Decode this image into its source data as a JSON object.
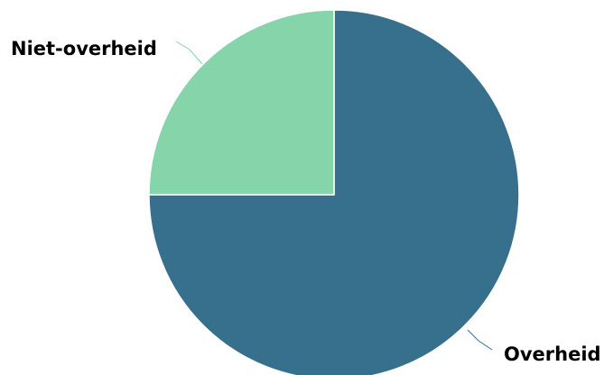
{
  "chart_data": {
    "type": "pie",
    "title": "",
    "slices": [
      {
        "label": "Overheid",
        "value": 75,
        "color": "#37708c"
      },
      {
        "label": "Niet-overheid",
        "value": 25,
        "color": "#85d4aa"
      }
    ],
    "start_angle": "12 o'clock",
    "direction": "clockwise",
    "legend": "none",
    "label_placement": "outside with leader lines"
  }
}
